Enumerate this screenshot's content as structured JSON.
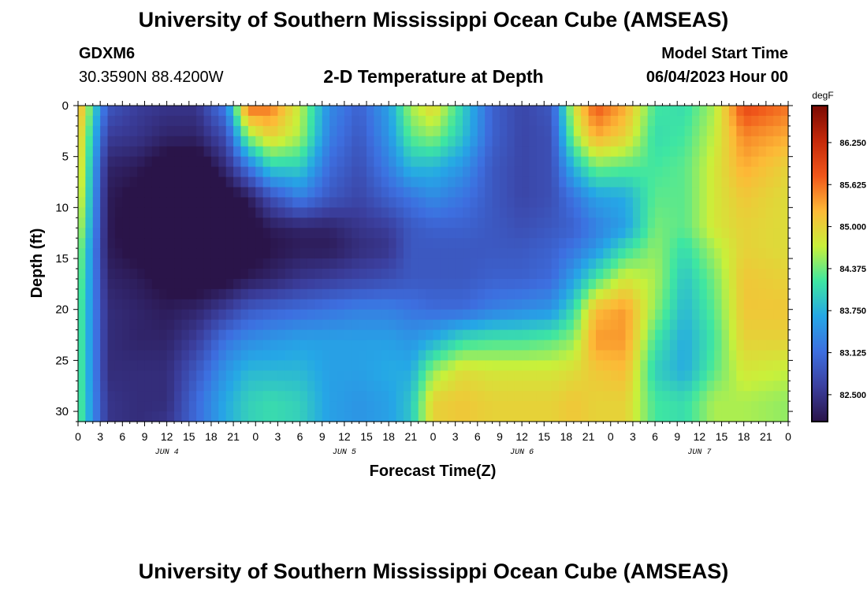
{
  "header": {
    "title": "University of Southern Mississippi Ocean Cube (AMSEAS)",
    "station": "GDXM6",
    "coords": "30.3590N  88.4200W",
    "plot_title": "2-D Temperature at Depth",
    "model_start_label": "Model Start Time",
    "model_start_value": "06/04/2023 Hour 00"
  },
  "footer": {
    "title": "University of Southern Mississippi Ocean Cube (AMSEAS)"
  },
  "chart_data": {
    "type": "heatmap",
    "title": "2-D Temperature at Depth",
    "xlabel": "Forecast Time(Z)",
    "ylabel": "Depth (ft)",
    "x_tick_labels": [
      "0",
      "3",
      "6",
      "9",
      "12",
      "15",
      "18",
      "21",
      "0",
      "3",
      "6",
      "9",
      "12",
      "15",
      "18",
      "21",
      "0",
      "3",
      "6",
      "9",
      "12",
      "15",
      "18",
      "21",
      "0",
      "3",
      "6",
      "9",
      "12",
      "15",
      "18",
      "21",
      "0"
    ],
    "date_labels": [
      {
        "label": "JUN 4",
        "hour": 12
      },
      {
        "label": "JUN 5",
        "hour": 36
      },
      {
        "label": "JUN 6",
        "hour": 60
      },
      {
        "label": "JUN 7",
        "hour": 84
      }
    ],
    "x_range_hours": [
      0,
      96
    ],
    "y_ticks": [
      0,
      5,
      10,
      15,
      20,
      25,
      30
    ],
    "y_range_ft": [
      0,
      31
    ],
    "colorbar": {
      "units": "degF",
      "range": [
        82.1,
        86.8
      ],
      "ticks": [
        "82.500",
        "83.125",
        "83.750",
        "84.375",
        "85.000",
        "85.625",
        "86.250"
      ],
      "tick_values": [
        82.5,
        83.125,
        83.75,
        84.375,
        85.0,
        85.625,
        86.25
      ],
      "colors": [
        "#2a1449",
        "#3b3f9e",
        "#3d6fe0",
        "#25a7e6",
        "#3ee6a2",
        "#c9f03a",
        "#fdb937",
        "#f0561a",
        "#c4290a",
        "#7a0a03"
      ]
    },
    "grid": false,
    "keyframes_hours": [
      0,
      4,
      8,
      12,
      16,
      20,
      23,
      26,
      30,
      34,
      38,
      42,
      45,
      48,
      52,
      56,
      60,
      64,
      67,
      70,
      74,
      78,
      82,
      86,
      90,
      96
    ],
    "keyframes_depth_ft": [
      0,
      3,
      6,
      9,
      12,
      14,
      17,
      20,
      23,
      26,
      29,
      31
    ],
    "temperature_degF": [
      [
        85.4,
        85.2,
        85.1,
        85.0,
        84.8,
        84.6,
        84.5,
        84.4,
        84.4,
        84.4,
        84.4,
        84.4
      ],
      [
        82.9,
        82.6,
        82.3,
        82.2,
        82.2,
        82.2,
        82.3,
        82.4,
        82.4,
        82.4,
        82.5,
        82.5
      ],
      [
        82.6,
        82.5,
        82.2,
        82.0,
        81.9,
        82.0,
        82.2,
        82.3,
        82.3,
        82.4,
        82.4,
        82.4
      ],
      [
        82.5,
        82.3,
        81.9,
        81.6,
        81.5,
        81.7,
        82.0,
        82.2,
        82.3,
        82.4,
        82.4,
        82.5
      ],
      [
        82.5,
        82.3,
        81.8,
        81.5,
        81.4,
        81.5,
        81.9,
        82.3,
        82.6,
        82.9,
        83.1,
        83.1
      ],
      [
        83.3,
        82.8,
        82.4,
        81.9,
        81.6,
        81.7,
        82.0,
        82.6,
        83.2,
        83.5,
        83.7,
        83.7
      ],
      [
        85.7,
        84.5,
        83.2,
        82.2,
        81.9,
        81.9,
        82.2,
        82.9,
        83.4,
        83.8,
        84.0,
        84.0
      ],
      [
        85.6,
        85.0,
        84.0,
        82.8,
        82.2,
        82.1,
        82.3,
        83.0,
        83.5,
        83.8,
        84.1,
        84.1
      ],
      [
        84.7,
        84.6,
        84.0,
        83.3,
        82.3,
        82.2,
        82.5,
        83.1,
        83.6,
        83.8,
        84.0,
        84.0
      ],
      [
        83.4,
        83.3,
        83.1,
        82.9,
        82.3,
        82.2,
        82.6,
        83.2,
        83.6,
        83.6,
        83.6,
        83.6
      ],
      [
        83.0,
        82.9,
        82.8,
        82.7,
        82.5,
        82.4,
        82.7,
        83.3,
        83.6,
        83.6,
        83.5,
        83.5
      ],
      [
        83.6,
        83.5,
        83.3,
        83.0,
        82.6,
        82.5,
        82.8,
        83.3,
        83.6,
        83.7,
        83.6,
        83.6
      ],
      [
        84.6,
        84.3,
        83.8,
        83.2,
        82.9,
        82.9,
        82.9,
        83.2,
        83.5,
        83.7,
        83.9,
        83.9
      ],
      [
        85.0,
        84.5,
        83.8,
        83.4,
        83.0,
        82.9,
        82.9,
        83.1,
        83.7,
        84.5,
        85.0,
        85.0
      ],
      [
        84.0,
        83.9,
        83.5,
        83.2,
        83.0,
        82.9,
        82.9,
        83.1,
        84.1,
        84.9,
        85.1,
        85.1
      ],
      [
        83.0,
        83.0,
        82.9,
        82.9,
        82.9,
        82.9,
        83.0,
        83.3,
        84.2,
        84.8,
        85.0,
        85.0
      ],
      [
        82.7,
        82.7,
        82.7,
        82.7,
        82.8,
        82.9,
        83.0,
        83.4,
        84.2,
        84.8,
        85.0,
        85.0
      ],
      [
        82.9,
        82.8,
        82.8,
        82.8,
        82.9,
        83.0,
        83.1,
        83.5,
        84.3,
        84.8,
        85.0,
        85.0
      ],
      [
        84.8,
        84.5,
        83.8,
        83.2,
        83.0,
        83.2,
        83.6,
        84.1,
        84.5,
        84.9,
        85.1,
        85.1
      ],
      [
        85.8,
        85.3,
        84.4,
        83.6,
        83.3,
        83.5,
        84.2,
        85.2,
        85.4,
        85.1,
        85.0,
        85.0
      ],
      [
        85.3,
        85.0,
        84.3,
        83.7,
        83.6,
        84.1,
        84.8,
        85.4,
        85.4,
        85.2,
        85.0,
        85.0
      ],
      [
        84.2,
        84.1,
        84.2,
        84.3,
        84.4,
        84.5,
        84.6,
        84.5,
        84.2,
        84.0,
        84.2,
        84.2
      ],
      [
        84.1,
        84.2,
        84.3,
        84.3,
        84.3,
        84.1,
        83.9,
        83.8,
        83.7,
        83.7,
        84.1,
        84.1
      ],
      [
        84.6,
        84.7,
        84.8,
        84.8,
        84.8,
        84.6,
        84.4,
        84.3,
        84.2,
        84.3,
        84.6,
        84.6
      ],
      [
        85.9,
        85.5,
        85.3,
        85.1,
        85.0,
        85.0,
        85.1,
        85.1,
        85.0,
        84.8,
        84.6,
        84.6
      ],
      [
        85.6,
        85.3,
        85.0,
        84.9,
        84.9,
        84.9,
        85.0,
        85.1,
        85.0,
        84.7,
        84.5,
        84.5
      ]
    ]
  }
}
